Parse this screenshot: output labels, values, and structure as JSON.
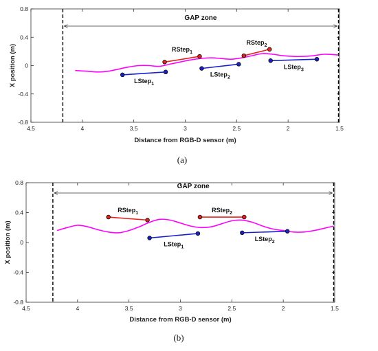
{
  "chart_data": [
    {
      "type": "line",
      "caption": "(a)",
      "xlabel": "Distance from RGB-D sensor (m)",
      "ylabel": "X position (m)",
      "xlim": [
        4.5,
        1.5
      ],
      "x_reversed": true,
      "ylim": [
        -0.8,
        0.8
      ],
      "xticks": [
        "4.5",
        "4",
        "3.5",
        "3",
        "2.5",
        "2",
        "1.5"
      ],
      "yticks": [
        "0.8",
        "0.4",
        "0",
        "-0.4",
        "-0.8"
      ],
      "grid": false,
      "gap_zone": {
        "label": "GAP zone",
        "from": 4.19,
        "to": 1.51
      },
      "colors": {
        "trajectory": "#ff00ff",
        "right_step": "#e8201a",
        "left_step": "#1a20c8",
        "boundary": "#000000"
      },
      "trajectory": {
        "x": [
          4.07,
          3.95,
          3.85,
          3.75,
          3.65,
          3.55,
          3.45,
          3.35,
          3.25,
          3.15,
          3.05,
          2.95,
          2.85,
          2.75,
          2.65,
          2.55,
          2.45,
          2.35,
          2.25,
          2.15,
          2.05,
          1.95,
          1.85,
          1.75,
          1.65,
          1.51
        ],
        "y": [
          -0.07,
          -0.08,
          -0.09,
          -0.08,
          -0.05,
          -0.02,
          0.0,
          0.0,
          -0.01,
          0.02,
          0.05,
          0.08,
          0.1,
          0.11,
          0.1,
          0.09,
          0.11,
          0.14,
          0.17,
          0.16,
          0.14,
          0.13,
          0.13,
          0.14,
          0.16,
          0.15
        ]
      },
      "steps": [
        {
          "label": "RStep",
          "index": "1",
          "side": "right",
          "x": [
            3.2,
            2.86
          ],
          "y": [
            0.05,
            0.13
          ]
        },
        {
          "label": "RStep",
          "index": "2",
          "side": "right",
          "x": [
            2.43,
            2.18
          ],
          "y": [
            0.14,
            0.23
          ]
        },
        {
          "label": "LStep",
          "index": "1",
          "side": "left",
          "x": [
            3.61,
            3.19
          ],
          "y": [
            -0.13,
            -0.09
          ]
        },
        {
          "label": "LStep",
          "index": "2",
          "side": "left",
          "x": [
            2.84,
            2.48
          ],
          "y": [
            -0.04,
            0.02
          ]
        },
        {
          "label": "LStep",
          "index": "3",
          "side": "left",
          "x": [
            2.17,
            1.72
          ],
          "y": [
            0.07,
            0.09
          ]
        }
      ]
    },
    {
      "type": "line",
      "caption": "(b)",
      "xlabel": "Distance from RGB-D sensor (m)",
      "ylabel": "X position (m)",
      "xlim": [
        4.5,
        1.5
      ],
      "x_reversed": true,
      "ylim": [
        -0.8,
        0.8
      ],
      "xticks": [
        "4.5",
        "4",
        "3.5",
        "3",
        "2.5",
        "2",
        "1.5"
      ],
      "yticks": [
        "0.8",
        "0.4",
        "0",
        "-0.4",
        "-0.8"
      ],
      "grid": false,
      "gap_zone": {
        "label": "GAP zone",
        "from": 4.24,
        "to": 1.51
      },
      "colors": {
        "trajectory": "#ff00ff",
        "right_step": "#e8201a",
        "left_step": "#1a20c8",
        "boundary": "#000000"
      },
      "trajectory": {
        "x": [
          4.2,
          4.1,
          4.0,
          3.9,
          3.8,
          3.7,
          3.6,
          3.5,
          3.4,
          3.3,
          3.2,
          3.1,
          3.0,
          2.9,
          2.8,
          2.7,
          2.6,
          2.5,
          2.4,
          2.3,
          2.2,
          2.1,
          2.0,
          1.9,
          1.8,
          1.7,
          1.6,
          1.51
        ],
        "y": [
          0.16,
          0.2,
          0.23,
          0.21,
          0.17,
          0.14,
          0.13,
          0.16,
          0.21,
          0.27,
          0.31,
          0.3,
          0.26,
          0.22,
          0.2,
          0.21,
          0.25,
          0.29,
          0.3,
          0.27,
          0.22,
          0.18,
          0.16,
          0.14,
          0.14,
          0.16,
          0.19,
          0.22
        ]
      },
      "steps": [
        {
          "label": "RStep",
          "index": "1",
          "side": "right",
          "x": [
            3.7,
            3.32
          ],
          "y": [
            0.34,
            0.3
          ]
        },
        {
          "label": "RStep",
          "index": "2",
          "side": "right",
          "x": [
            2.81,
            2.38
          ],
          "y": [
            0.34,
            0.34
          ]
        },
        {
          "label": "LStep",
          "index": "1",
          "side": "left",
          "x": [
            3.3,
            2.83
          ],
          "y": [
            0.06,
            0.12
          ]
        },
        {
          "label": "LStep",
          "index": "2",
          "side": "left",
          "x": [
            2.4,
            1.96
          ],
          "y": [
            0.13,
            0.15
          ]
        }
      ]
    }
  ]
}
